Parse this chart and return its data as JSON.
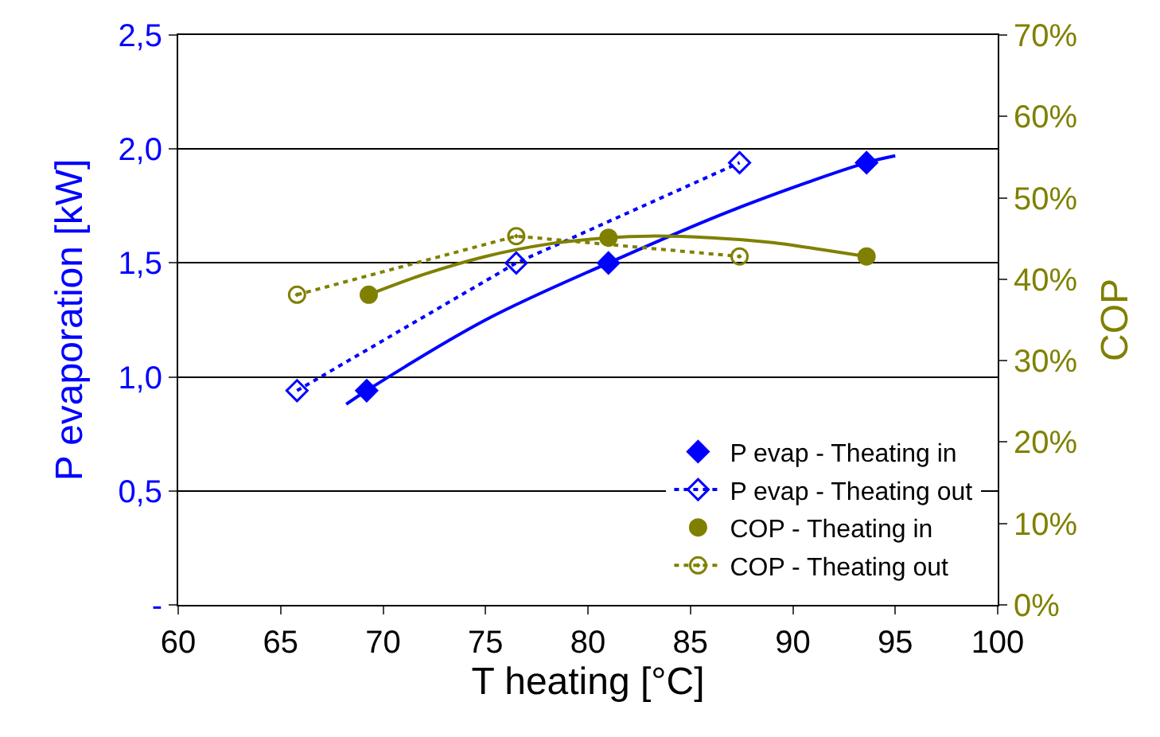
{
  "chart_data": {
    "type": "line",
    "xlabel": "T heating [°C]",
    "ylabel": "P evaporation [kW]",
    "y2label": "COP",
    "xlim": [
      60,
      100
    ],
    "xticks": [
      60,
      65,
      70,
      75,
      80,
      85,
      90,
      95,
      100
    ],
    "ylim": [
      0,
      2.5
    ],
    "yticks": [
      {
        "value": 0,
        "label": "-"
      },
      {
        "value": 0.5,
        "label": "0,5"
      },
      {
        "value": 1.0,
        "label": "1,0"
      },
      {
        "value": 1.5,
        "label": "1,5"
      },
      {
        "value": 2.0,
        "label": "2,0"
      },
      {
        "value": 2.5,
        "label": "2,5"
      }
    ],
    "y2lim": [
      0,
      70
    ],
    "y2ticks": [
      {
        "value": 0,
        "label": "0%"
      },
      {
        "value": 10,
        "label": "10%"
      },
      {
        "value": 20,
        "label": "20%"
      },
      {
        "value": 30,
        "label": "30%"
      },
      {
        "value": 40,
        "label": "40%"
      },
      {
        "value": 50,
        "label": "50%"
      },
      {
        "value": 60,
        "label": "60%"
      },
      {
        "value": 70,
        "label": "70%"
      }
    ],
    "grid": "y",
    "legend": "bottom right",
    "series": [
      {
        "marker": "none",
        "line_style": "solid",
        "color": "#0000ff",
        "x": [
          68.2,
          69.2,
          75,
          81,
          87,
          93.6,
          95
        ],
        "values": [
          0.88,
          0.94,
          1.25,
          1.5,
          1.73,
          1.94,
          1.97
        ]
      },
      {
        "marker": "none",
        "line_style": "solid",
        "color": "#808000",
        "axis": "y2",
        "x": [
          69.3,
          72,
          75,
          78,
          81,
          83,
          86,
          89,
          91,
          93.6
        ],
        "values": [
          38.1,
          40.6,
          42.8,
          44.3,
          45.1,
          45.3,
          45.1,
          44.5,
          43.8,
          42.8
        ]
      },
      {
        "name": "P evap - Theating in",
        "type": "scatter",
        "marker": "diamond",
        "color": "#0000ff",
        "x": [
          69.2,
          81.0,
          93.6
        ],
        "values": [
          0.94,
          1.5,
          1.94
        ]
      },
      {
        "name": "P evap - Theating out",
        "type": "line",
        "marker": "diamond",
        "line_style": "dotted",
        "color": "#0000ff",
        "x": [
          65.8,
          76.5,
          87.4
        ],
        "values": [
          0.94,
          1.5,
          1.94
        ]
      },
      {
        "name": "COP - Theating in",
        "type": "scatter",
        "marker": "circle",
        "color": "#808000",
        "axis": "y2",
        "x": [
          69.3,
          81.0,
          93.6
        ],
        "values": [
          38.1,
          45.1,
          42.8
        ]
      },
      {
        "name": "COP - Theating out",
        "type": "line",
        "marker": "circle",
        "line_style": "dotted",
        "color": "#808000",
        "axis": "y2",
        "x": [
          65.8,
          76.5,
          87.4
        ],
        "values": [
          38.1,
          45.3,
          42.8
        ]
      }
    ]
  }
}
